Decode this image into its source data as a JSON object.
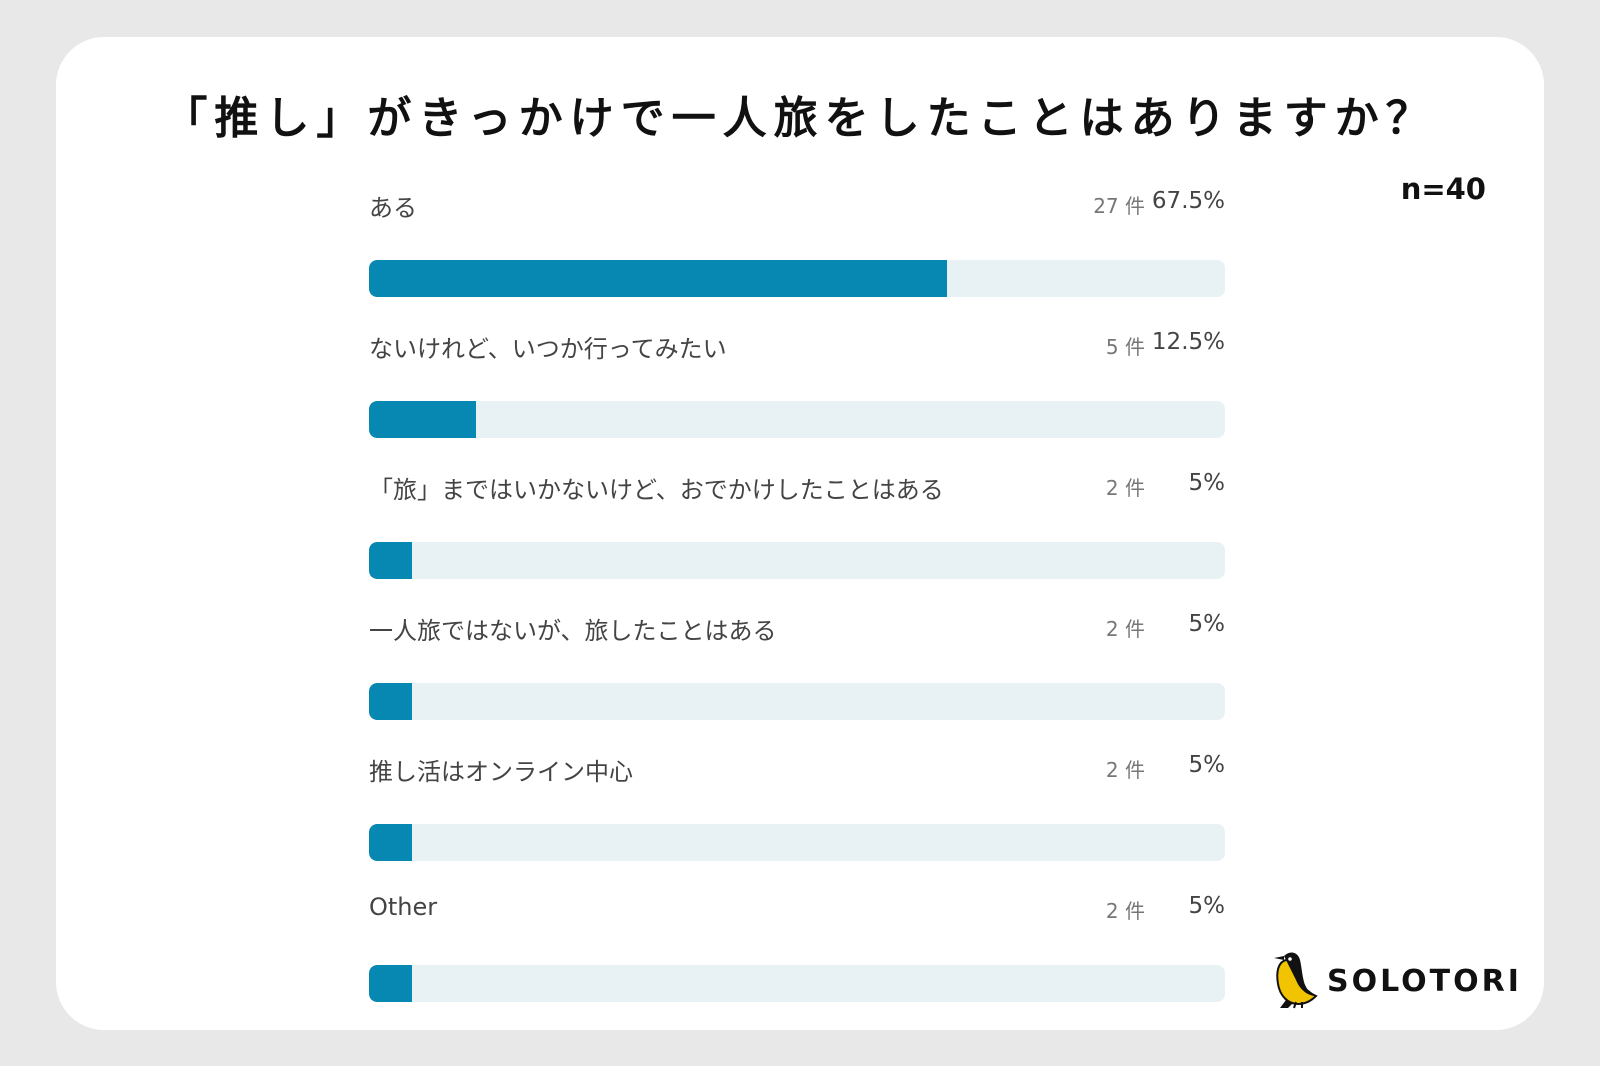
{
  "chart_data": {
    "type": "bar",
    "orientation": "horizontal",
    "title": "「推し」がきっかけで一人旅をしたことはありますか？",
    "sample_size": "n=40",
    "categories": [
      "ある",
      "ないけれど、いつか行ってみたい",
      "「旅」まではいかないけど、おでかけしたことはある",
      "一人旅ではないが、旅したことはある",
      "推し活はオンライン中心",
      "Other"
    ],
    "counts": [
      27,
      5,
      2,
      2,
      2,
      2
    ],
    "count_labels": [
      "27 件",
      "5 件",
      "2 件",
      "2 件",
      "2 件",
      "2 件"
    ],
    "values": [
      67.5,
      12.5,
      5,
      5,
      5,
      5
    ],
    "value_labels": [
      "67.5%",
      "12.5%",
      "5%",
      "5%",
      "5%",
      "5%"
    ],
    "xlim": [
      0,
      100
    ],
    "bar_color": "#0788b3",
    "track_color": "#e8f2f5"
  },
  "brand": {
    "name": "SOLOTORI",
    "icon": "bird-icon"
  }
}
